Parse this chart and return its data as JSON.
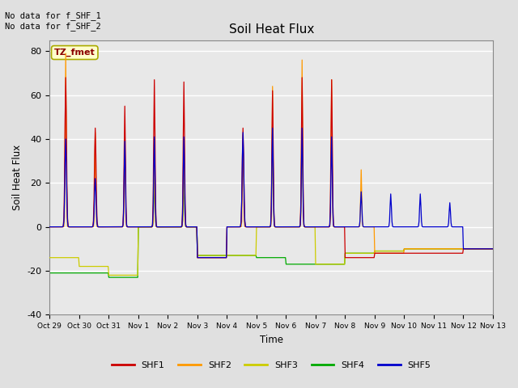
{
  "title": "Soil Heat Flux",
  "ylabel": "Soil Heat Flux",
  "xlabel": "Time",
  "ylim": [
    -40,
    85
  ],
  "background_color": "#e0e0e0",
  "plot_bg_color": "#e8e8e8",
  "annotation_text": "No data for f_SHF_1\nNo data for f_SHF_2",
  "legend_label": "TZ_fmet",
  "legend_box_color": "#ffffcc",
  "legend_box_edge": "#aaaa00",
  "series_colors": {
    "SHF1": "#cc0000",
    "SHF2": "#ff9900",
    "SHF3": "#cccc00",
    "SHF4": "#00aa00",
    "SHF5": "#0000cc"
  },
  "xtick_labels": [
    "Oct 29",
    "Oct 30",
    "Oct 31",
    "Nov 1",
    "Nov 2",
    "Nov 3",
    "Nov 4",
    "Nov 5",
    "Nov 6",
    "Nov 7",
    "Nov 8",
    "Nov 9",
    "Nov 10",
    "Nov 11",
    "Nov 12",
    "Nov 13"
  ],
  "grid_color": "#ffffff",
  "yticks": [
    -40,
    -20,
    0,
    20,
    40,
    60,
    80
  ],
  "figsize": [
    6.4,
    4.8
  ],
  "dpi": 100
}
